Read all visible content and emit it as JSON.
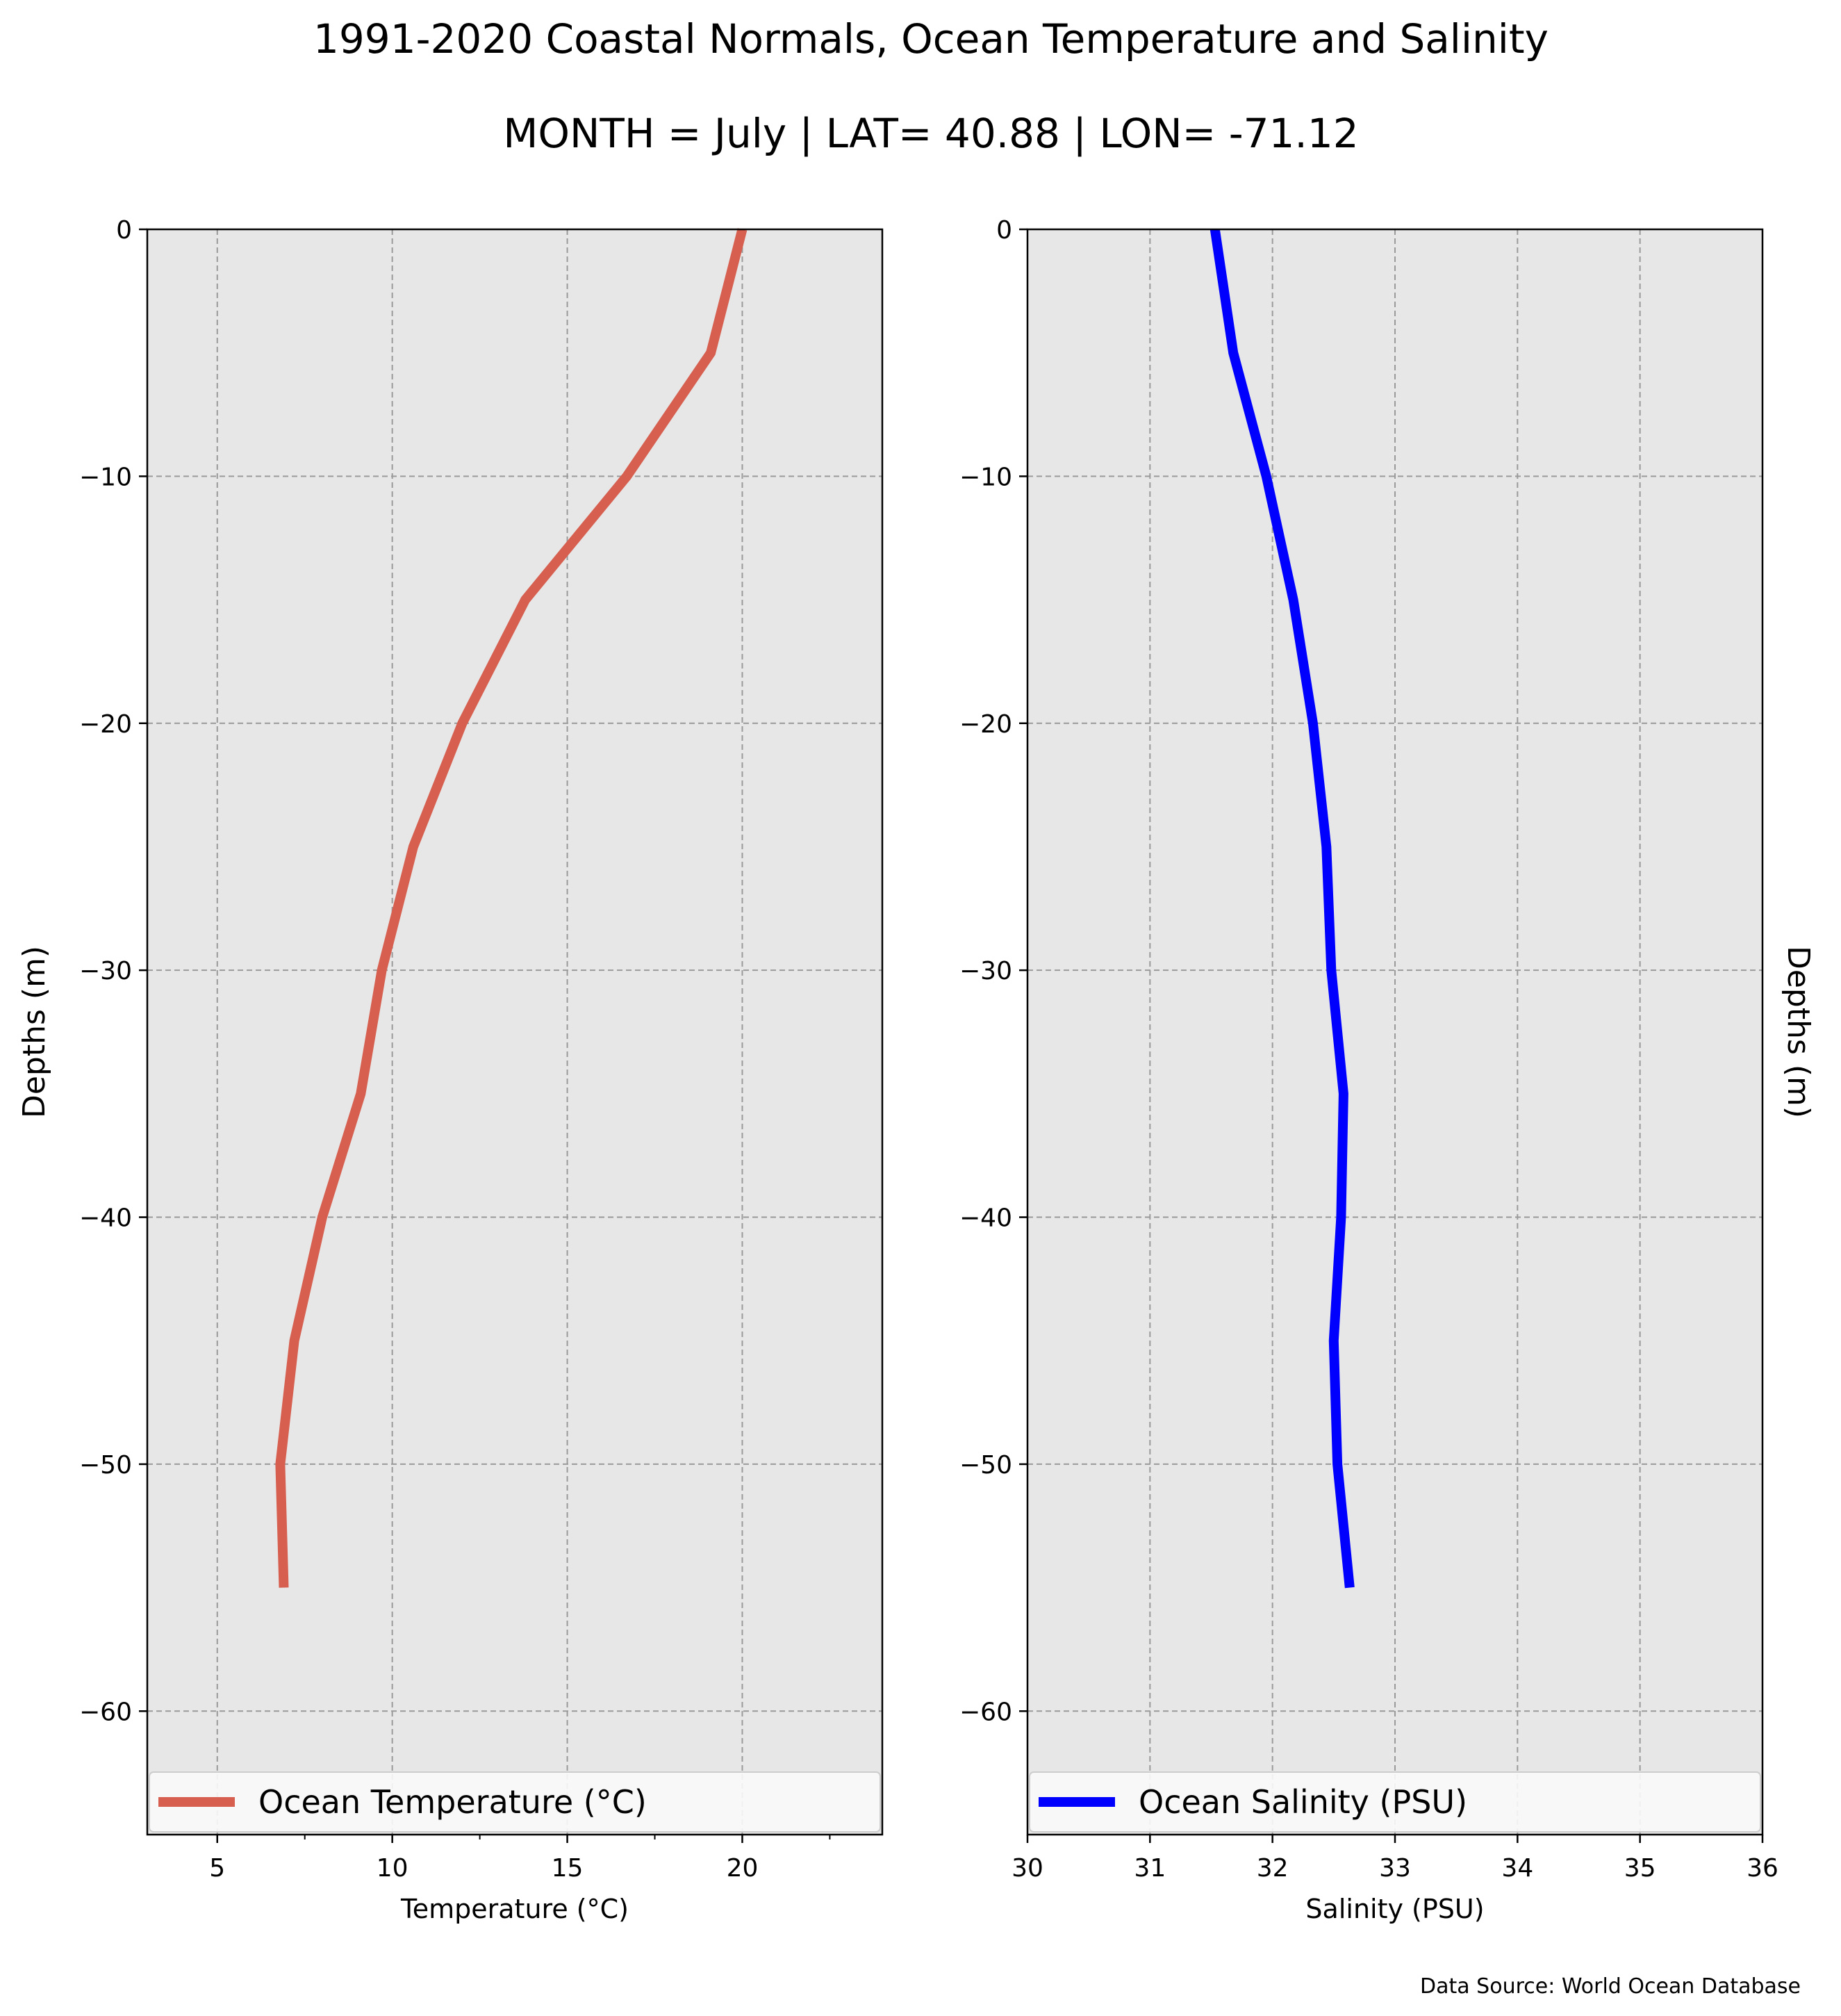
{
  "figure": {
    "title_line1": "1991-2020 Coastal Normals, Ocean Temperature and Salinity",
    "title_line2": "MONTH = July | LAT= 40.88 | LON= -71.12",
    "source_note": "Data Source: World Ocean Database"
  },
  "chart_data": [
    {
      "type": "line",
      "xlabel": "Temperature ($^\\circ$C)",
      "xlabel_display": "Temperature (°C)",
      "ylabel": "Depths (m)",
      "xlim": [
        3,
        24
      ],
      "ylim": [
        -65,
        0
      ],
      "x_ticks": [
        5,
        10,
        15,
        20
      ],
      "y_ticks": [
        0,
        -10,
        -20,
        -30,
        -40,
        -50,
        -60
      ],
      "grid": true,
      "legend_placement": "bottom",
      "series": [
        {
          "name": "Ocean Temperature (°C)",
          "color": "#d65f4f",
          "points": [
            {
              "x": 20.0,
              "y": 0
            },
            {
              "x": 19.1,
              "y": -5
            },
            {
              "x": 16.7,
              "y": -10
            },
            {
              "x": 13.8,
              "y": -15
            },
            {
              "x": 12.0,
              "y": -20
            },
            {
              "x": 10.6,
              "y": -25
            },
            {
              "x": 9.7,
              "y": -30
            },
            {
              "x": 9.1,
              "y": -35
            },
            {
              "x": 8.0,
              "y": -40
            },
            {
              "x": 7.2,
              "y": -45
            },
            {
              "x": 6.8,
              "y": -50
            },
            {
              "x": 6.9,
              "y": -55
            }
          ]
        }
      ]
    },
    {
      "type": "line",
      "xlabel": "Salinity (PSU)",
      "ylabel": "Depths (m)",
      "xlim": [
        30,
        36
      ],
      "ylim": [
        -65,
        0
      ],
      "x_ticks": [
        30,
        31,
        32,
        33,
        34,
        35,
        36
      ],
      "y_ticks": [
        0,
        -10,
        -20,
        -30,
        -40,
        -50,
        -60
      ],
      "grid": true,
      "legend_placement": "bottom",
      "series": [
        {
          "name": "Ocean Salinity (PSU)",
          "color": "#0000ff",
          "points": [
            {
              "x": 31.53,
              "y": 0
            },
            {
              "x": 31.68,
              "y": -5
            },
            {
              "x": 31.95,
              "y": -10
            },
            {
              "x": 32.17,
              "y": -15
            },
            {
              "x": 32.33,
              "y": -20
            },
            {
              "x": 32.44,
              "y": -25
            },
            {
              "x": 32.48,
              "y": -30
            },
            {
              "x": 32.58,
              "y": -35
            },
            {
              "x": 32.56,
              "y": -40
            },
            {
              "x": 32.5,
              "y": -45
            },
            {
              "x": 32.53,
              "y": -50
            },
            {
              "x": 32.63,
              "y": -55
            }
          ]
        }
      ]
    }
  ]
}
